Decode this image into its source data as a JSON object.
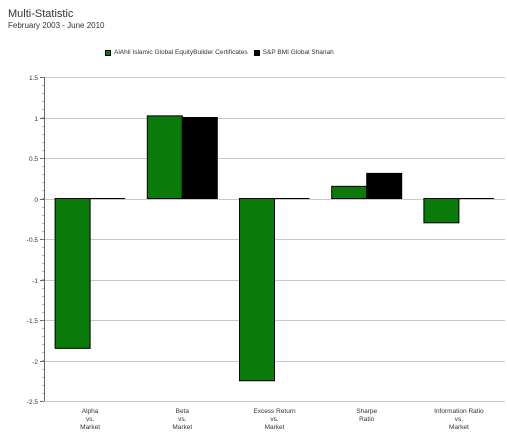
{
  "header": {
    "title": "Multi-Statistic",
    "subtitle": "February 2003 - June 2010"
  },
  "chart_data": {
    "type": "bar",
    "categories": [
      [
        "Alpha",
        "vs.",
        "Market"
      ],
      [
        "Beta",
        "vs.",
        "Market"
      ],
      [
        "Excess Return",
        "vs.",
        "Market"
      ],
      [
        "Sharpe",
        "Ratio"
      ],
      [
        "Information Ratio",
        "vs.",
        "Market"
      ]
    ],
    "series": [
      {
        "name": "AlAhli Islamic Global EquityBuilder Certificates",
        "color": "#0a7a0a",
        "values": [
          -1.85,
          1.02,
          -2.25,
          0.15,
          -0.3
        ]
      },
      {
        "name": "S&P BMI Global Shariah",
        "color": "#000000",
        "values": [
          0.0,
          1.0,
          0.0,
          0.31,
          0.0
        ]
      }
    ],
    "ylim": [
      -2.5,
      1.5
    ],
    "yticks": [
      "1.5",
      "1",
      "0.5",
      "0",
      "-0.5",
      "-1",
      "-1.5",
      "-2",
      "-2.5"
    ],
    "grid": true,
    "legend_position": "top"
  }
}
